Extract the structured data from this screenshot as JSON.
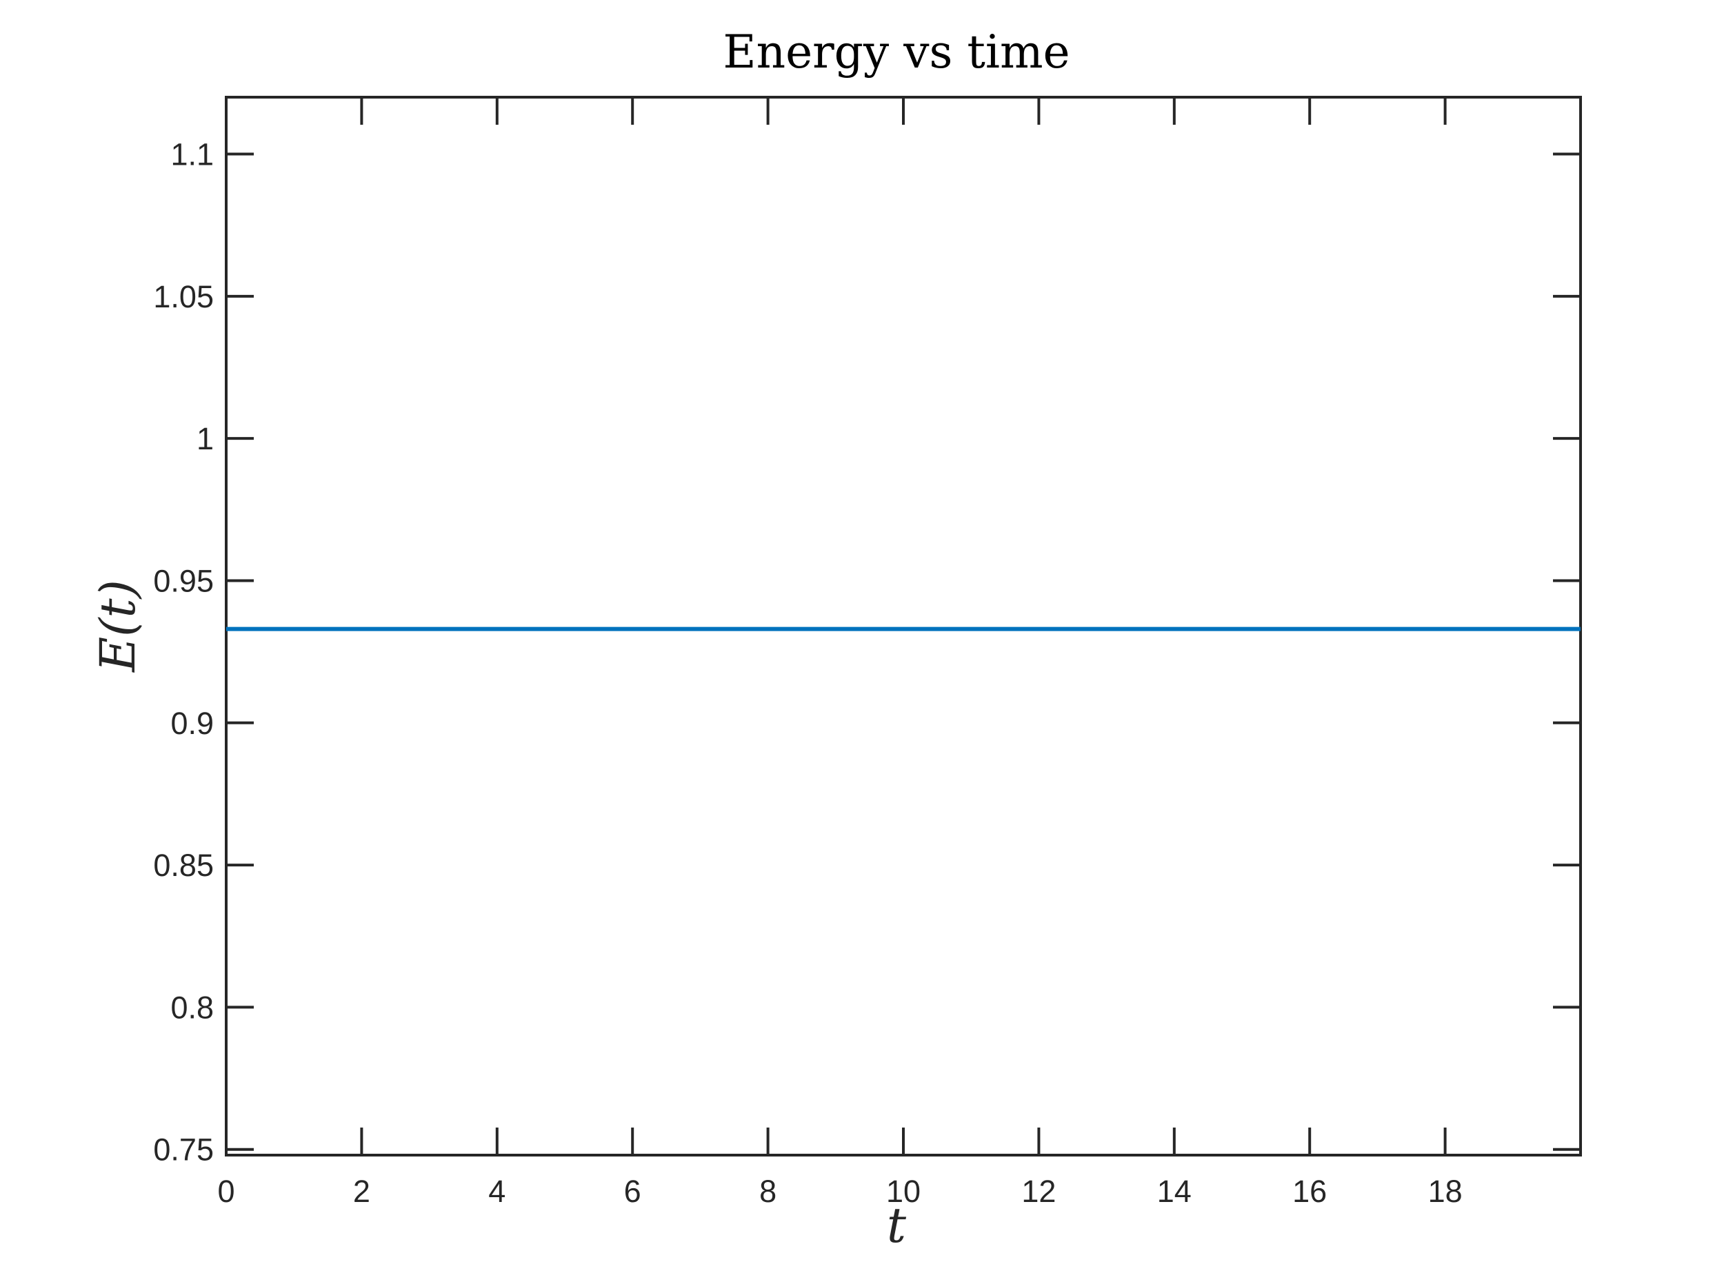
{
  "chart_data": {
    "type": "line",
    "title": "Energy vs time",
    "xlabel": "t",
    "ylabel": "E(t)",
    "xlim": [
      0,
      20
    ],
    "ylim": [
      0.748,
      1.12
    ],
    "x_ticks": [
      0,
      2,
      4,
      6,
      8,
      10,
      12,
      14,
      16,
      18
    ],
    "x_tick_labels": [
      "0",
      "2",
      "4",
      "6",
      "8",
      "10",
      "12",
      "14",
      "16",
      "18"
    ],
    "y_ticks": [
      0.75,
      0.8,
      0.85,
      0.9,
      0.95,
      1,
      1.05,
      1.1
    ],
    "y_tick_labels": [
      "0.75",
      "0.8",
      "0.85",
      "0.9",
      "0.95",
      "1",
      "1.05",
      "1.1"
    ],
    "grid": false,
    "legend": "none",
    "series": [
      {
        "color": "#0072BD",
        "x": [
          0,
          20
        ],
        "y": [
          0.933,
          0.933
        ]
      }
    ]
  }
}
